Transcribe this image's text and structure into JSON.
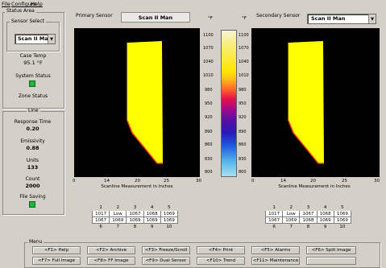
{
  "menubar": {
    "items": [
      "File",
      "Configure",
      "Help"
    ]
  },
  "status_area": {
    "title": "Status Area",
    "sensor_select_title": "Sensor Select",
    "sensor_value": "Scan II Man",
    "case_temp_label": "Case Temp",
    "case_temp_value": "95.1 °F",
    "system_status_label": "System Status",
    "zone_status_label": "Zone Status"
  },
  "line": {
    "title": "Line",
    "response_time_label": "Response Time",
    "response_time_value": "0.20",
    "emissivity_label": "Emissivity",
    "emissivity_value": "0.88",
    "units_label": "Units",
    "units_value": "133",
    "count_label": "Count",
    "count_value": "2000",
    "file_saving_label": "File Saving"
  },
  "primary": {
    "label": "Primary Sensor",
    "title": "Scan II Man",
    "x_axis_label": "Scanline Measurement in Inches",
    "x_ticks": [
      "0",
      "14",
      "20",
      "25",
      "30"
    ]
  },
  "secondary": {
    "label": "Secondary Sensor",
    "combo_value": "Scan II Man",
    "x_axis_label": "Scanline Measurement in Inches",
    "x_ticks": [
      "0",
      "14",
      "20",
      "25",
      "30"
    ]
  },
  "colorbar": {
    "unit_left": "°F",
    "unit_right": "°F",
    "ticks_left": [
      "1100",
      "1070",
      "1040",
      "1010",
      "980",
      "950",
      "920",
      "890",
      "860",
      "830",
      "800"
    ],
    "ticks_right": [
      "1100",
      "1070",
      "1040",
      "1010",
      "980",
      "950",
      "920",
      "890",
      "860",
      "830",
      "800"
    ]
  },
  "table_left": {
    "header1": [
      "1",
      "2",
      "3",
      "4",
      "5"
    ],
    "row1": [
      "1017",
      "Low",
      "1067",
      "1068",
      "1069"
    ],
    "row2": [
      "1067",
      "1069",
      "1069",
      "1069",
      "1069"
    ],
    "header2": [
      "6",
      "7",
      "8",
      "9",
      "10"
    ]
  },
  "table_right": {
    "header1": [
      "1",
      "2",
      "3",
      "4",
      "5"
    ],
    "row1": [
      "1017",
      "Low",
      "1067",
      "1068",
      "1069"
    ],
    "row2": [
      "1067",
      "1069",
      "1068",
      "1069",
      "1069"
    ],
    "header2": [
      "6",
      "7",
      "8",
      "9",
      "10"
    ]
  },
  "menu_panel": {
    "title": "Menu",
    "row1": [
      "<F1> Help",
      "<F2> Archive",
      "<F3> Freeze/Scroll",
      "<F4> Print",
      "<F5> Alarms",
      "<F6> Split Image"
    ],
    "row2": [
      "<F7> Full Image",
      "<F8> FF Image",
      "<F9> Dual Sensor",
      "<F10> Trend",
      "<F11> Maintenance"
    ]
  },
  "colors": {
    "window_bg": "#d4d0c8",
    "plot_bg": "#000000",
    "hot": "#ffff00",
    "led_green": "#1fb53a"
  }
}
